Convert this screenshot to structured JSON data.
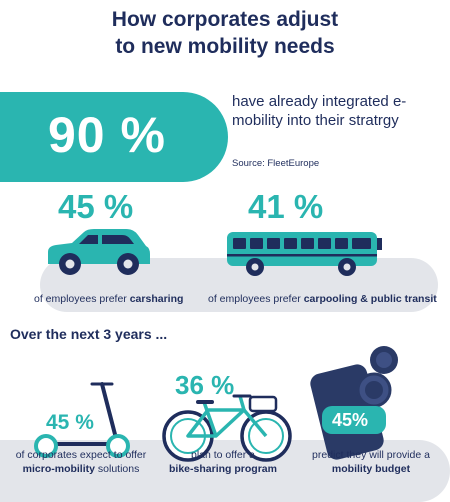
{
  "header": {
    "title_line1": "How corporates adjust",
    "title_line2": "to new mobility needs"
  },
  "hero": {
    "value": "90 %",
    "text": "have already integrated e-mobility into their stratrgy",
    "source": "Source: FleetEurope"
  },
  "stats_row": [
    {
      "value": "45 %",
      "caption_prefix": "of employees prefer ",
      "caption_bold": "carsharing",
      "icon": "car-icon"
    },
    {
      "value": "41 %",
      "caption_prefix": "of employees prefer ",
      "caption_bold": "carpooling & public transit",
      "icon": "bus-icon"
    }
  ],
  "section_heading": "Over the next 3 years ...",
  "future": [
    {
      "value": "45 %",
      "line1": "of  corporates expect to offer",
      "line2_bold": "micro-mobility",
      "line2_rest": " solutions",
      "icon": "scooter-icon"
    },
    {
      "value": "36 %",
      "line1": "plan to offer a",
      "line2_bold": "bike-sharing program",
      "line2_rest": "",
      "icon": "bicycle-icon"
    },
    {
      "value": "45%",
      "line1": "predict they will provide a",
      "line2_bold": "mobility budget",
      "line2_rest": "",
      "icon": "phone-coins-icon"
    }
  ],
  "colors": {
    "teal": "#2ab5b0",
    "navy": "#1f2d5c",
    "band": "#e3e5ea",
    "dark_icon": "#2a3a66"
  }
}
